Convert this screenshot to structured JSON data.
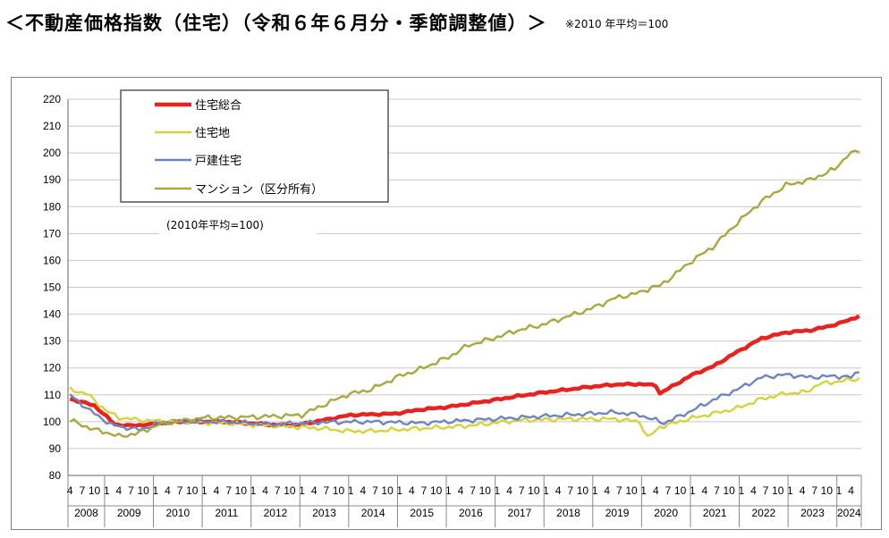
{
  "header": {
    "title": "＜不動産価格指数（住宅）（令和６年６月分・季節調整値）＞",
    "note": "※2010 年平均＝100"
  },
  "chart_data": {
    "type": "line",
    "base_note": "(2010年平均=100)",
    "ylim": [
      80,
      220
    ],
    "yticks": [
      80,
      90,
      100,
      110,
      120,
      130,
      140,
      150,
      160,
      170,
      180,
      190,
      200,
      210,
      220
    ],
    "x_start": "2008-04",
    "x_end": "2024-06",
    "month_ticks": [
      "4",
      "7",
      "10",
      "1"
    ],
    "years": [
      "2008",
      "2009",
      "2010",
      "2011",
      "2012",
      "2013",
      "2014",
      "2015",
      "2016",
      "2017",
      "2018",
      "2019",
      "2020",
      "2021",
      "2022",
      "2023",
      "2024"
    ],
    "grid": true,
    "legend_position": "top-left",
    "series": [
      {
        "name": "住宅総合",
        "color": "#e8231f",
        "anchors": [
          [
            "2008-04",
            108.5
          ],
          [
            "2008-10",
            106
          ],
          [
            "2009-03",
            99
          ],
          [
            "2009-06",
            98.5
          ],
          [
            "2009-12",
            99
          ],
          [
            "2010-06",
            100
          ],
          [
            "2011-06",
            100
          ],
          [
            "2012-06",
            98.8
          ],
          [
            "2012-12",
            98.8
          ],
          [
            "2013-06",
            100.5
          ],
          [
            "2014-01",
            102.5
          ],
          [
            "2014-12",
            103
          ],
          [
            "2015-06",
            104.5
          ],
          [
            "2016-01",
            105.5
          ],
          [
            "2016-12",
            108
          ],
          [
            "2017-06",
            109.5
          ],
          [
            "2018-01",
            111
          ],
          [
            "2018-12",
            113
          ],
          [
            "2019-06",
            113.8
          ],
          [
            "2019-12",
            114
          ],
          [
            "2020-04",
            113.5
          ],
          [
            "2020-05",
            110.5
          ],
          [
            "2020-09",
            114
          ],
          [
            "2021-01",
            117.5
          ],
          [
            "2021-06",
            120.5
          ],
          [
            "2021-12",
            126
          ],
          [
            "2022-06",
            131
          ],
          [
            "2022-12",
            133.2
          ],
          [
            "2023-06",
            134
          ],
          [
            "2023-09",
            135
          ],
          [
            "2024-01",
            136.5
          ],
          [
            "2024-06",
            139.3
          ]
        ]
      },
      {
        "name": "住宅地",
        "color": "#d8d23a",
        "anchors": [
          [
            "2008-04",
            112
          ],
          [
            "2008-08",
            110.5
          ],
          [
            "2009-01",
            104
          ],
          [
            "2009-04",
            101.5
          ],
          [
            "2009-10",
            100.5
          ],
          [
            "2010-06",
            100
          ],
          [
            "2011-06",
            99.5
          ],
          [
            "2012-06",
            98.5
          ],
          [
            "2013-06",
            97.5
          ],
          [
            "2013-12",
            96.5
          ],
          [
            "2014-06",
            96.5
          ],
          [
            "2015-06",
            97.5
          ],
          [
            "2016-01",
            98
          ],
          [
            "2016-06",
            98.5
          ],
          [
            "2017-06",
            100.5
          ],
          [
            "2018-06",
            101
          ],
          [
            "2019-06",
            101
          ],
          [
            "2019-12",
            100
          ],
          [
            "2020-02",
            94
          ],
          [
            "2020-05",
            98
          ],
          [
            "2020-12",
            101
          ],
          [
            "2021-06",
            103
          ],
          [
            "2021-12",
            105
          ],
          [
            "2022-06",
            108.5
          ],
          [
            "2022-12",
            110.5
          ],
          [
            "2023-05",
            111
          ],
          [
            "2023-08",
            114
          ],
          [
            "2024-01",
            115
          ],
          [
            "2024-06",
            116
          ]
        ]
      },
      {
        "name": "戸建住宅",
        "color": "#6e86c0",
        "anchors": [
          [
            "2008-04",
            110
          ],
          [
            "2008-09",
            104
          ],
          [
            "2009-02",
            99
          ],
          [
            "2009-05",
            98
          ],
          [
            "2009-09",
            97
          ],
          [
            "2010-02",
            99.5
          ],
          [
            "2010-06",
            100
          ],
          [
            "2011-06",
            100
          ],
          [
            "2012-06",
            99
          ],
          [
            "2013-06",
            99.8
          ],
          [
            "2014-06",
            100
          ],
          [
            "2015-06",
            99.5
          ],
          [
            "2016-06",
            100.5
          ],
          [
            "2017-06",
            101.5
          ],
          [
            "2018-06",
            102.5
          ],
          [
            "2019-06",
            103.5
          ],
          [
            "2019-12",
            102.5
          ],
          [
            "2020-06",
            99.5
          ],
          [
            "2020-12",
            103.5
          ],
          [
            "2021-06",
            108
          ],
          [
            "2021-12",
            112
          ],
          [
            "2022-06",
            116.5
          ],
          [
            "2022-12",
            117.5
          ],
          [
            "2023-06",
            116.5
          ],
          [
            "2023-12",
            117
          ],
          [
            "2024-04",
            116.5
          ],
          [
            "2024-06",
            119
          ]
        ]
      },
      {
        "name": "マンション（区分所有）",
        "color": "#a8a840",
        "anchors": [
          [
            "2008-04",
            100.5
          ],
          [
            "2008-10",
            97
          ],
          [
            "2009-01",
            96
          ],
          [
            "2009-04",
            94.5
          ],
          [
            "2009-09",
            95.8
          ],
          [
            "2010-02",
            99
          ],
          [
            "2010-06",
            100
          ],
          [
            "2011-01",
            101.5
          ],
          [
            "2011-06",
            101.5
          ],
          [
            "2012-06",
            102
          ],
          [
            "2013-01",
            102.5
          ],
          [
            "2013-06",
            106
          ],
          [
            "2013-12",
            110
          ],
          [
            "2014-06",
            112
          ],
          [
            "2015-01",
            117
          ],
          [
            "2015-06",
            119.5
          ],
          [
            "2016-01",
            124
          ],
          [
            "2016-06",
            128.5
          ],
          [
            "2016-12",
            131
          ],
          [
            "2017-06",
            134
          ],
          [
            "2017-12",
            136
          ],
          [
            "2018-06",
            139
          ],
          [
            "2018-12",
            142
          ],
          [
            "2019-06",
            146
          ],
          [
            "2019-12",
            148
          ],
          [
            "2020-03",
            150
          ],
          [
            "2020-05",
            150.5
          ],
          [
            "2020-08",
            154
          ],
          [
            "2021-01",
            160
          ],
          [
            "2021-06",
            165
          ],
          [
            "2021-12",
            174
          ],
          [
            "2022-06",
            182
          ],
          [
            "2022-12",
            188
          ],
          [
            "2023-06",
            190
          ],
          [
            "2023-12",
            194
          ],
          [
            "2024-03",
            199
          ],
          [
            "2024-06",
            201
          ]
        ]
      }
    ]
  }
}
